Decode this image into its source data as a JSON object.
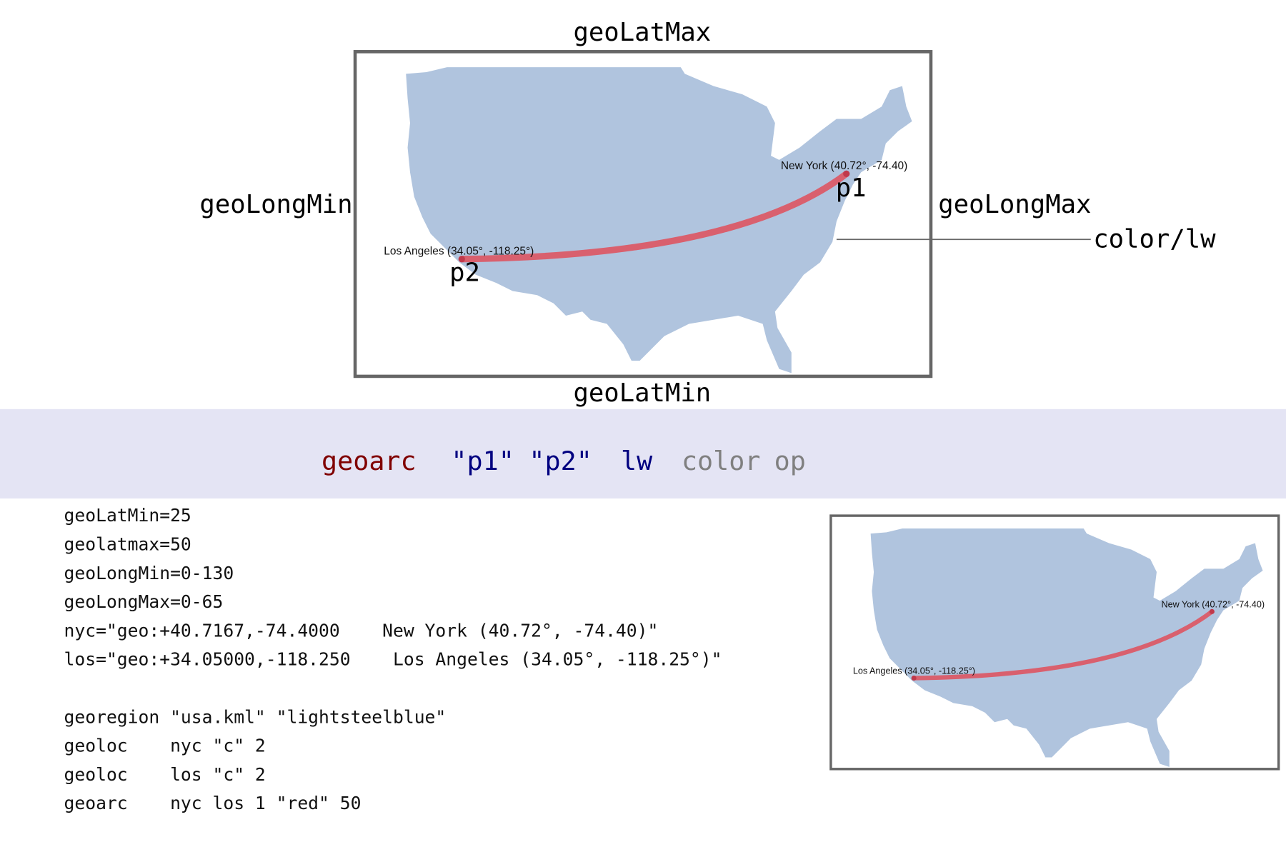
{
  "annotations": {
    "lat_max": "geoLatMax",
    "lat_min": "geoLatMin",
    "long_min": "geoLongMin",
    "long_max": "geoLongMax",
    "color_lw": "color/lw"
  },
  "syntax": {
    "command": "geoarc",
    "p1": "\"p1\"",
    "p2": "\"p2\"",
    "lw": "lw",
    "color": "color",
    "op": "op"
  },
  "map": {
    "ny_label": "New York (40.72°, -74.40)",
    "la_label": "Los Angeles (34.05°, -118.25°)",
    "p1": "p1",
    "p2": "p2"
  },
  "code": {
    "definitions": [
      "geoLatMin=25",
      "geolatmax=50",
      "geoLongMin=0-130",
      "geoLongMax=0-65",
      "nyc=\"geo:+40.7167,-74.4000    New York (40.72°, -74.40)\"",
      "los=\"geo:+34.05000,-118.250    Los Angeles (34.05°, -118.25°)\""
    ],
    "commands": [
      "georegion \"usa.kml\" \"lightsteelblue\"",
      "geoloc    nyc \"c\" 2",
      "geoloc    los \"c\" 2",
      "geoarc    nyc los 1 \"red\" 50"
    ]
  },
  "thumbnail": {
    "ny_label": "New York (40.72°, -74.40)",
    "la_label": "Los Angeles (34.05°, -118.25°)"
  }
}
